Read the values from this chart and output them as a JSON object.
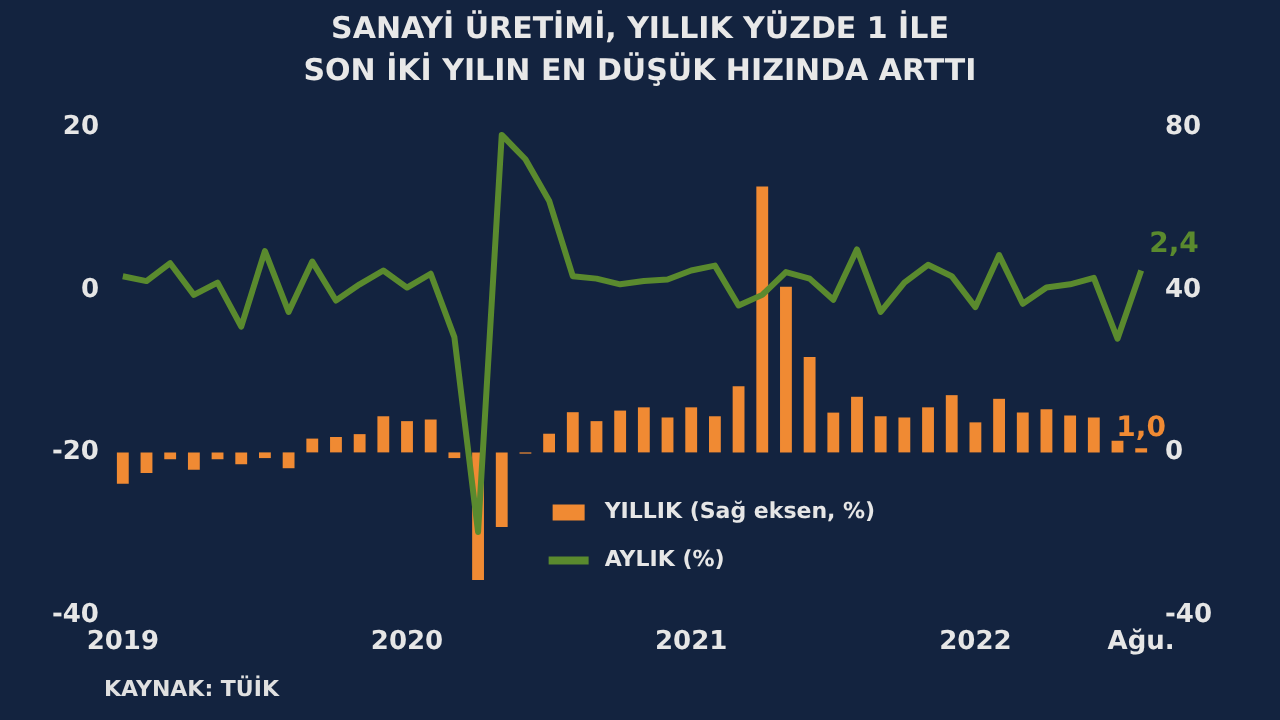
{
  "chart_data": {
    "type": "bar",
    "title": "SANAYİ ÜRETİMİ, YILLIK YÜZDE 1 İLE SON İKİ YILIN EN DÜŞÜK HIZINDA ARTTI",
    "categories": [
      "2019",
      null,
      null,
      null,
      null,
      null,
      null,
      null,
      null,
      null,
      null,
      null,
      "2020",
      null,
      null,
      null,
      null,
      null,
      null,
      null,
      null,
      null,
      null,
      null,
      "2021",
      null,
      null,
      null,
      null,
      null,
      null,
      null,
      null,
      null,
      null,
      null,
      "2022",
      null,
      null,
      null,
      null,
      null,
      null,
      "Ağu."
    ],
    "series": [
      {
        "name": "YILLIK (Sağ eksen, %)",
        "axis": "y2",
        "color": "#f08a33",
        "values": [
          -7.7,
          -5.1,
          -1.7,
          -4.3,
          -1.7,
          -2.9,
          -1.4,
          -3.9,
          3.4,
          3.8,
          4.5,
          8.9,
          7.7,
          8.1,
          -1.4,
          -31.4,
          -18.4,
          -0.3,
          4.6,
          9.9,
          7.7,
          10.3,
          11.1,
          8.6,
          11.1,
          8.9,
          16.3,
          65.5,
          40.8,
          23.5,
          9.8,
          13.7,
          8.9,
          8.6,
          11.1,
          14.1,
          7.4,
          13.2,
          9.8,
          10.6,
          9.1,
          8.6,
          2.9,
          1.0
        ],
        "value_labels": [
          null,
          null,
          null,
          null,
          null,
          null,
          null,
          null,
          null,
          null,
          null,
          null,
          null,
          null,
          null,
          null,
          null,
          null,
          null,
          null,
          null,
          null,
          null,
          null,
          null,
          null,
          null,
          null,
          null,
          null,
          null,
          null,
          null,
          null,
          null,
          null,
          null,
          null,
          null,
          null,
          null,
          null,
          null,
          "1,0"
        ]
      },
      {
        "name": "AYLIK (%)",
        "type": "line",
        "axis": "y",
        "color": "#5a8a2e",
        "values": [
          1.7,
          1.1,
          3.3,
          -0.6,
          0.9,
          -4.5,
          4.8,
          -2.7,
          3.5,
          -1.3,
          0.7,
          2.4,
          0.3,
          2.0,
          -5.8,
          -29.8,
          19.1,
          16.1,
          11.0,
          1.7,
          1.4,
          0.7,
          1.1,
          1.3,
          2.4,
          3.0,
          -1.9,
          -0.6,
          2.2,
          1.4,
          -1.2,
          5.0,
          -2.7,
          0.9,
          3.1,
          1.7,
          -2.1,
          4.3,
          -1.7,
          0.3,
          0.7,
          1.5,
          -6.0,
          2.4
        ],
        "value_labels": [
          null,
          null,
          null,
          null,
          null,
          null,
          null,
          null,
          null,
          null,
          null,
          null,
          null,
          null,
          null,
          null,
          null,
          null,
          null,
          null,
          null,
          null,
          null,
          null,
          null,
          null,
          null,
          null,
          null,
          null,
          null,
          null,
          null,
          null,
          null,
          null,
          null,
          null,
          null,
          null,
          null,
          null,
          null,
          "2,4"
        ]
      }
    ],
    "ylim": [
      -40,
      20
    ],
    "yticks": [
      -40,
      -20,
      0,
      20
    ],
    "y2lim": [
      -40,
      80
    ],
    "y2ticks": [
      -40,
      0,
      40,
      80
    ],
    "grid": false,
    "legend": "bottom",
    "marker": "none",
    "line_style": "solid",
    "annotations": [
      "KAYNAK: TÜİK"
    ]
  }
}
